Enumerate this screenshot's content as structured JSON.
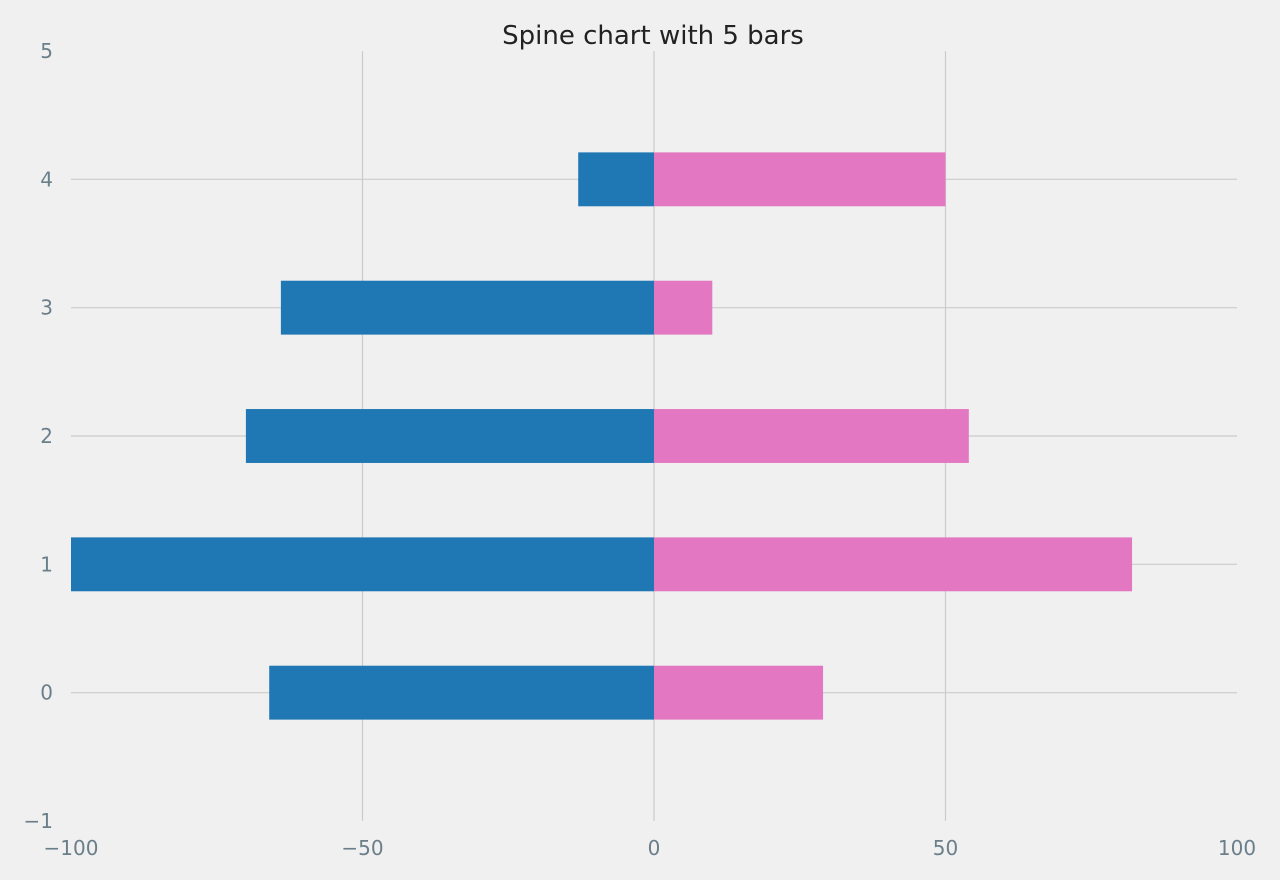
{
  "chart_data": {
    "type": "bar",
    "orientation": "horizontal",
    "title": "Spine chart with 5 bars",
    "xlabel": "",
    "ylabel": "",
    "categories": [
      0,
      1,
      2,
      3,
      4
    ],
    "series": [
      {
        "values": [
          -66,
          -100,
          -70,
          -64,
          -13
        ],
        "color": "#1f77b4"
      },
      {
        "values": [
          29,
          82,
          54,
          10,
          50
        ],
        "color": "#e377c2"
      }
    ],
    "xlim": [
      -100,
      100
    ],
    "ylim": [
      -1,
      5
    ],
    "xticks": [
      -100,
      -50,
      0,
      50,
      100
    ],
    "xtick_labels": [
      "−100",
      "−50",
      "0",
      "50",
      "100"
    ],
    "yticks": [
      -1,
      0,
      1,
      2,
      3,
      4,
      5
    ],
    "ytick_labels": [
      "−1",
      "0",
      "1",
      "2",
      "3",
      "4",
      "5"
    ],
    "grid": true,
    "legend": "none"
  }
}
